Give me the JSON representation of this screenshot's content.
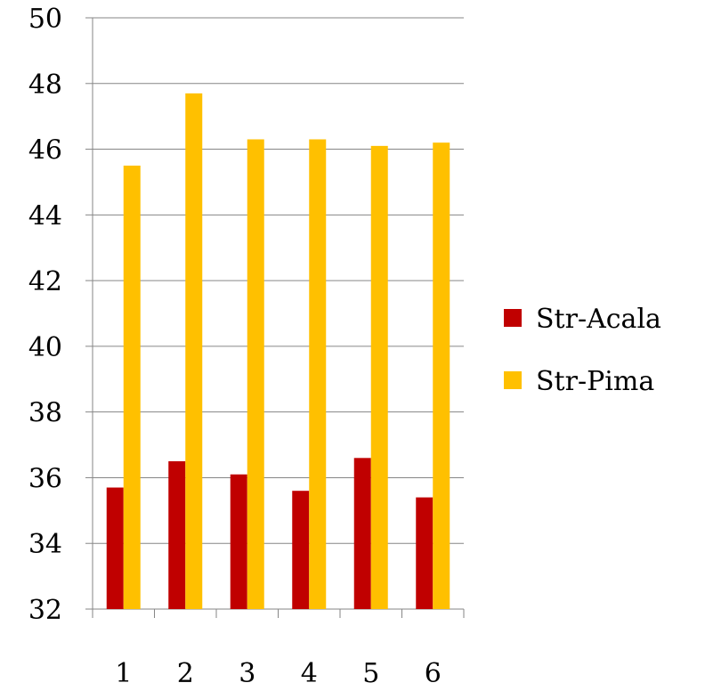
{
  "chart_data": {
    "type": "bar",
    "categories": [
      "1",
      "2",
      "3",
      "4",
      "5",
      "6"
    ],
    "series": [
      {
        "name": "Str-Acala",
        "color": "#c00000",
        "values": [
          35.7,
          36.5,
          36.1,
          35.6,
          36.6,
          35.4
        ]
      },
      {
        "name": "Str-Pima",
        "color": "#ffc000",
        "values": [
          45.5,
          47.7,
          46.3,
          46.3,
          46.1,
          46.2
        ]
      }
    ],
    "ylim": [
      32,
      50
    ],
    "yticks": [
      32,
      34,
      36,
      38,
      40,
      42,
      44,
      46,
      48,
      50
    ],
    "grid": true,
    "legend": "right"
  }
}
